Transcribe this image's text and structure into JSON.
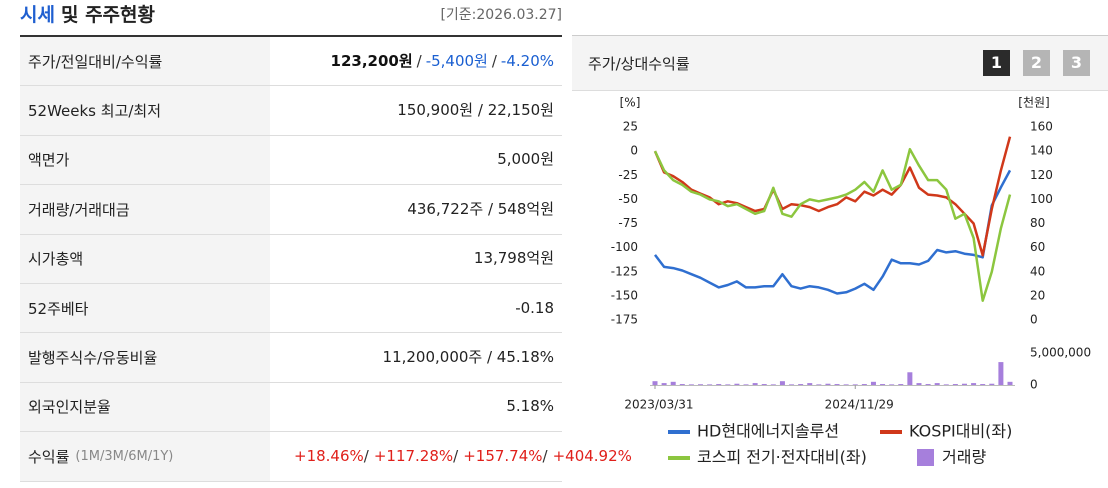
{
  "header": {
    "title_parts": [
      {
        "text": "시세",
        "color": "#1f5fd0"
      },
      {
        "text": "및 주주현황",
        "color": "#222222"
      }
    ],
    "date": "[기준:2026.03.27]"
  },
  "table": {
    "rows": [
      {
        "label": "주가/전일대비/수익률",
        "value_parts": [
          {
            "text": "123,200원",
            "color": "#111111",
            "bold": true
          },
          {
            "text": "/",
            "color": "#333333"
          },
          {
            "text": "-5,400원",
            "color": "#1a5fd1"
          },
          {
            "text": "/",
            "color": "#333333"
          },
          {
            "text": "-4.20%",
            "color": "#1a5fd1"
          }
        ]
      },
      {
        "label": "52Weeks 최고/최저",
        "value": "150,900원 / 22,150원"
      },
      {
        "label": "액면가",
        "value": "5,000원"
      },
      {
        "label": "거래량/거래대금",
        "value": "436,722주 / 548억원"
      },
      {
        "label": "시가총액",
        "value": "13,798억원"
      },
      {
        "label": "52주베타",
        "value": "-0.18"
      },
      {
        "label": "발행주식수/유동비율",
        "value": "11,200,000주 / 45.18%"
      },
      {
        "label": "외국인지분율",
        "value": "5.18%"
      },
      {
        "label": "수익률",
        "label_note": "(1M/3M/6M/1Y)",
        "value_parts": [
          {
            "text": "+18.46%",
            "color": "#e0201b"
          },
          {
            "text": "/",
            "color": "#333333"
          },
          {
            "text": "+117.28%",
            "color": "#e0201b"
          },
          {
            "text": "/",
            "color": "#333333"
          },
          {
            "text": "+157.74%",
            "color": "#e0201b"
          },
          {
            "text": "/",
            "color": "#333333"
          },
          {
            "text": "+404.92%",
            "color": "#e0201b"
          }
        ]
      }
    ]
  },
  "panel": {
    "title": "주가/상대수익률",
    "buttons": [
      "1",
      "2",
      "3"
    ],
    "active_button": 0
  },
  "chart_data": {
    "type": "line",
    "categories": [
      "2023/03/31",
      null,
      null,
      null,
      null,
      null,
      null,
      null,
      null,
      null,
      null,
      null,
      null,
      null,
      null,
      null,
      null,
      null,
      null,
      null,
      null,
      null,
      "2024/11/29",
      null,
      null,
      null,
      null,
      null,
      null,
      null,
      null,
      null,
      null,
      null,
      null,
      null,
      null,
      null,
      null,
      null
    ],
    "ylabel": "[%]",
    "y2label": "[천원]",
    "ylim": [
      -175,
      25
    ],
    "yticks": [
      25,
      0,
      -25,
      -50,
      -75,
      -100,
      -125,
      -150,
      -175
    ],
    "y2lim": [
      0,
      160
    ],
    "y2ticks": [
      160,
      140,
      120,
      100,
      80,
      60,
      40,
      20,
      0
    ],
    "series": [
      {
        "name": "HD현대에너지솔루션",
        "color": "#2f6fd0",
        "axis": "y2",
        "values": [
          54,
          44,
          43,
          41,
          38,
          35,
          31,
          27,
          29,
          32,
          27,
          27,
          28,
          28,
          38,
          28,
          26,
          28,
          27,
          25,
          22,
          23,
          26,
          30,
          25,
          36,
          50,
          47,
          47,
          46,
          49,
          58,
          56,
          57,
          55,
          54,
          52,
          95,
          110,
          124
        ]
      },
      {
        "name": "KOSPI대비(좌)",
        "color": "#d0381a",
        "values": [
          0,
          -22,
          -26,
          -32,
          -40,
          -44,
          -48,
          -55,
          -52,
          -54,
          -58,
          -62,
          -60,
          -40,
          -60,
          -55,
          -56,
          -58,
          -62,
          -58,
          -55,
          -48,
          -52,
          -42,
          -46,
          -40,
          -45,
          -35,
          -17,
          -38,
          -45,
          -46,
          -48,
          -55,
          -65,
          -75,
          -108,
          -60,
          -20,
          15
        ]
      },
      {
        "name": "코스피 전기·전자대비(좌)",
        "color": "#8cc63f",
        "values": [
          0,
          -20,
          -30,
          -35,
          -42,
          -45,
          -50,
          -52,
          -57,
          -55,
          -60,
          -65,
          -62,
          -38,
          -65,
          -68,
          -55,
          -50,
          -52,
          -50,
          -48,
          -45,
          -40,
          -32,
          -42,
          -20,
          -40,
          -35,
          2,
          -15,
          -30,
          -30,
          -40,
          -70,
          -65,
          -90,
          -155,
          -125,
          -80,
          -45
        ]
      }
    ],
    "volume": {
      "name": "거래량",
      "color": "#a67fdc",
      "ylim": [
        0,
        5500000
      ],
      "yticks": [
        {
          "value": 5000000,
          "label": "5,000,000"
        },
        0
      ],
      "values": [
        600000,
        300000,
        500000,
        150000,
        100000,
        120000,
        100000,
        150000,
        100000,
        200000,
        100000,
        300000,
        150000,
        100000,
        600000,
        100000,
        150000,
        300000,
        100000,
        200000,
        150000,
        100000,
        100000,
        150000,
        500000,
        150000,
        100000,
        150000,
        2000000,
        300000,
        150000,
        300000,
        100000,
        150000,
        200000,
        300000,
        150000,
        200000,
        3600000,
        500000
      ]
    }
  }
}
